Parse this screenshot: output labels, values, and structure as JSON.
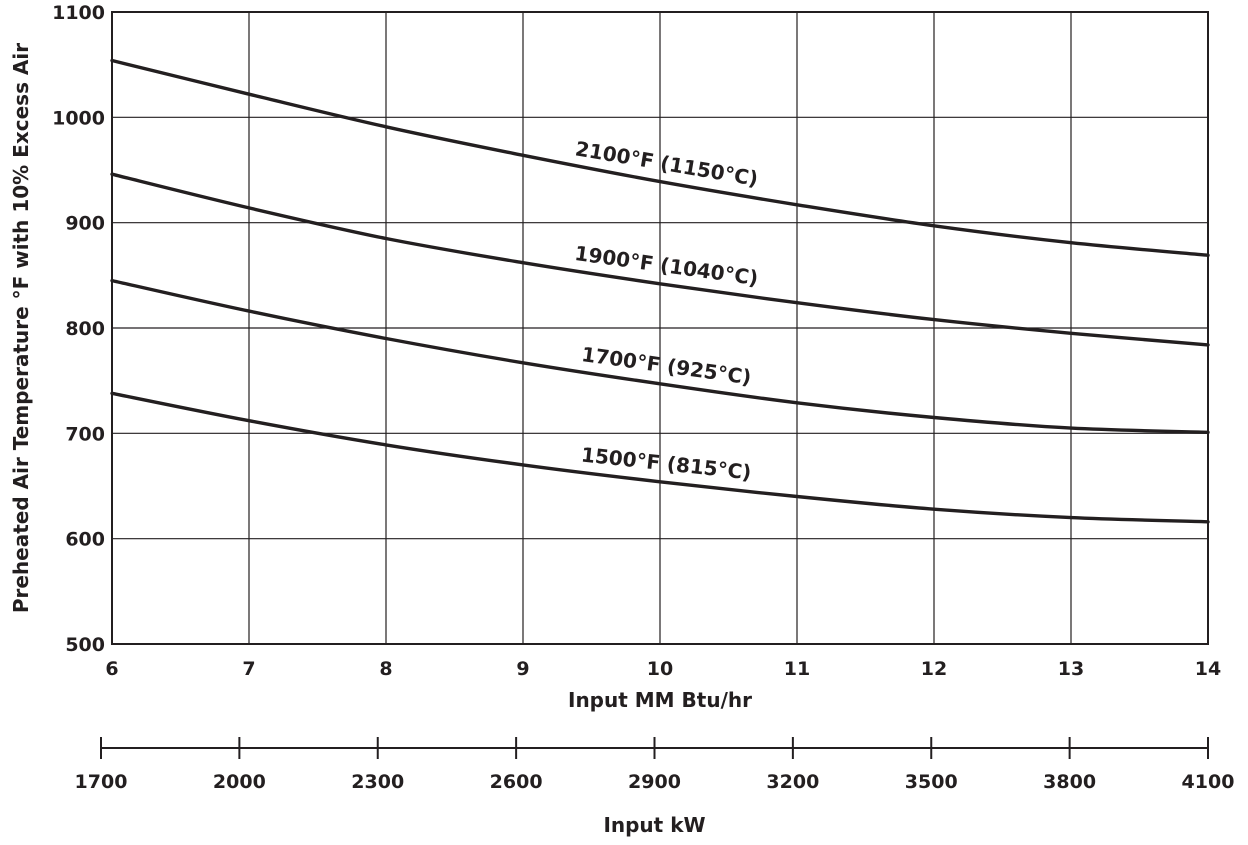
{
  "chart_data": {
    "type": "line",
    "title": "",
    "xlabel": "Input MM Btu/hr",
    "ylabel": "Preheated Air Temperature °F with 10% Excess Air",
    "xlim": [
      6,
      14
    ],
    "ylim": [
      500,
      1100
    ],
    "x_ticks": [
      "6",
      "7",
      "8",
      "9",
      "10",
      "11",
      "12",
      "13",
      "14"
    ],
    "y_ticks": [
      "500",
      "600",
      "700",
      "800",
      "900",
      "1000",
      "1100"
    ],
    "grid": true,
    "secondary_x_axis": {
      "label": "Input kW",
      "ticks": [
        "1700",
        "2000",
        "2300",
        "2600",
        "2900",
        "3200",
        "3500",
        "3800",
        "4100"
      ]
    },
    "series": [
      {
        "name": "2100°F (1150°C)",
        "x": [
          6,
          7,
          8,
          9,
          10,
          11,
          12,
          13,
          14
        ],
        "values": [
          1054,
          1022,
          991,
          964,
          939,
          917,
          897,
          881,
          869
        ]
      },
      {
        "name": "1900°F (1040°C)",
        "x": [
          6,
          7,
          8,
          9,
          10,
          11,
          12,
          13,
          14
        ],
        "values": [
          946,
          914,
          885,
          862,
          842,
          824,
          808,
          795,
          784
        ]
      },
      {
        "name": "1700°F (925°C)",
        "x": [
          6,
          7,
          8,
          9,
          10,
          11,
          12,
          13,
          14
        ],
        "values": [
          845,
          816,
          790,
          767,
          747,
          729,
          715,
          705,
          701
        ]
      },
      {
        "name": "1500°F (815°C)",
        "x": [
          6,
          7,
          8,
          9,
          10,
          11,
          12,
          13,
          14
        ],
        "values": [
          738,
          712,
          689,
          670,
          654,
          640,
          628,
          620,
          616
        ]
      }
    ]
  }
}
